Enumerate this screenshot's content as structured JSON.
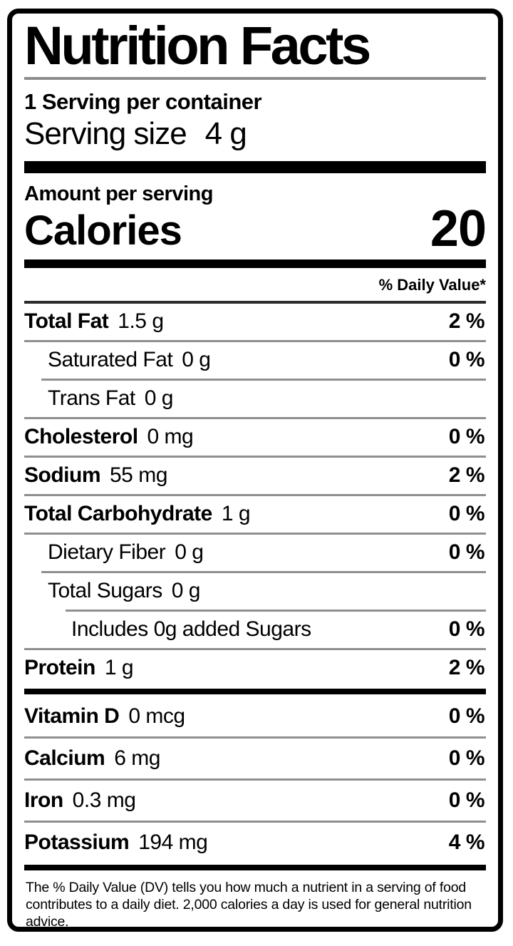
{
  "colors": {
    "text": "#000000",
    "background": "#ffffff",
    "border": "#000000",
    "thin_rule": "#8f8f8f"
  },
  "header": {
    "title": "Nutrition Facts",
    "servings_per_container": "1 Serving per container",
    "serving_size_label": "Serving size",
    "serving_size_value": "4 g"
  },
  "calories_section": {
    "amount_per_serving": "Amount per serving",
    "calories_label": "Calories",
    "calories_value": "20"
  },
  "daily_value_header": "% Daily Value*",
  "nutrient_rows": [
    {
      "name": "Total Fat",
      "amount": "1.5 g",
      "dv": "2 %",
      "indent": 0,
      "bold": true,
      "sep": "full"
    },
    {
      "name": "Saturated Fat",
      "amount": "0 g",
      "dv": "0 %",
      "indent": 1,
      "bold": false,
      "sep": "full"
    },
    {
      "name": "Trans Fat",
      "amount": "0 g",
      "dv": "",
      "indent": 1,
      "bold": false,
      "sep": "indent1"
    },
    {
      "name": "Cholesterol",
      "amount": "0 mg",
      "dv": "0 %",
      "indent": 0,
      "bold": true,
      "sep": "full"
    },
    {
      "name": "Sodium",
      "amount": "55 mg",
      "dv": "2 %",
      "indent": 0,
      "bold": true,
      "sep": "full"
    },
    {
      "name": "Total Carbohydrate",
      "amount": "1 g",
      "dv": "0 %",
      "indent": 0,
      "bold": true,
      "sep": "full"
    },
    {
      "name": "Dietary Fiber",
      "amount": "0 g",
      "dv": "0 %",
      "indent": 1,
      "bold": false,
      "sep": "full"
    },
    {
      "name": "Total Sugars",
      "amount": "0 g",
      "dv": "",
      "indent": 1,
      "bold": false,
      "sep": "indent1"
    },
    {
      "name": "Includes 0g added Sugars",
      "amount": "",
      "dv": "0 %",
      "indent": 2,
      "bold": false,
      "sep": "indent2"
    },
    {
      "name": "Protein",
      "amount": "1 g",
      "dv": "2 %",
      "indent": 0,
      "bold": true,
      "sep": "full"
    }
  ],
  "micronutrient_rows": [
    {
      "name": "Vitamin D",
      "amount": "0 mcg",
      "dv": "0 %",
      "indent": 0,
      "bold": true,
      "sep": "full"
    },
    {
      "name": "Calcium",
      "amount": "6 mg",
      "dv": "0 %",
      "indent": 0,
      "bold": true,
      "sep": "full"
    },
    {
      "name": "Iron",
      "amount": "0.3 mg",
      "dv": "0 %",
      "indent": 0,
      "bold": true,
      "sep": "full"
    },
    {
      "name": "Potassium",
      "amount": "194 mg",
      "dv": "4 %",
      "indent": 0,
      "bold": true,
      "sep": "full"
    }
  ],
  "footnote": "The % Daily Value (DV) tells you how much a nutrient in a serving of food contributes to a daily diet. 2,000 calories a day is used for general nutrition advice."
}
